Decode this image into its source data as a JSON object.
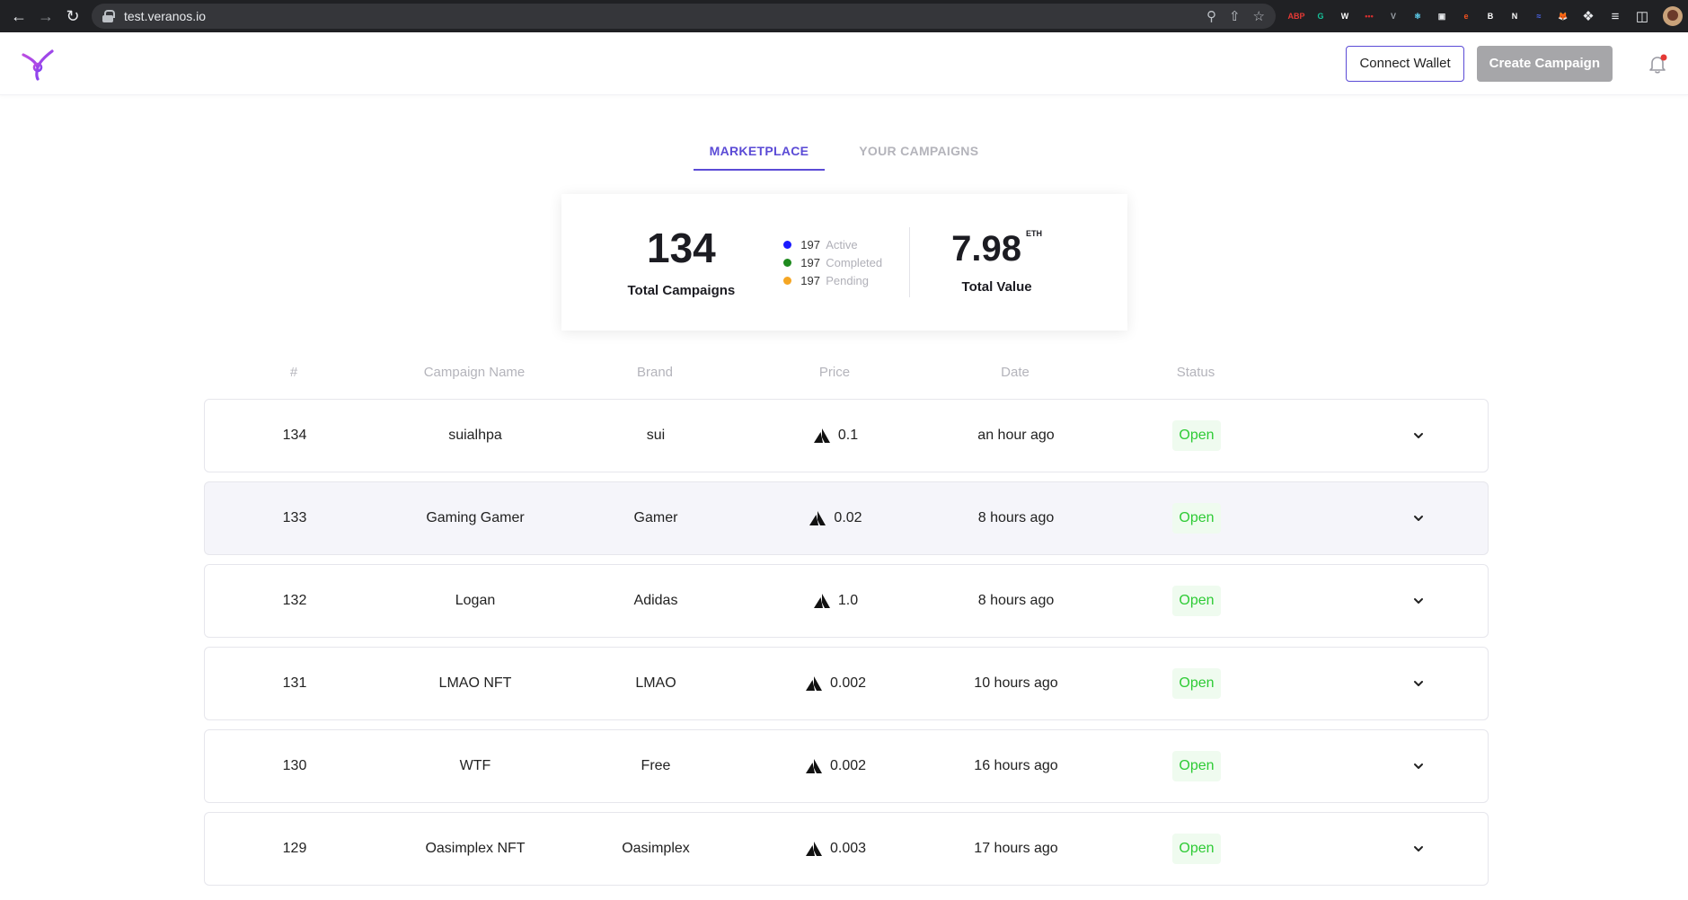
{
  "browser": {
    "url": "test.veranos.io",
    "extensions": [
      {
        "name": "adblock-icon",
        "text": "ABP",
        "color": "#e53935"
      },
      {
        "name": "grammarly-icon",
        "text": "G",
        "color": "#15c39a"
      },
      {
        "name": "w-icon",
        "text": "W",
        "color": "#ffffff"
      },
      {
        "name": "lastpass-icon",
        "text": "•••",
        "color": "#d32f2f"
      },
      {
        "name": "vue-devtools-icon",
        "text": "V",
        "color": "#9aa0a6"
      },
      {
        "name": "react-devtools-icon",
        "text": "⚛",
        "color": "#61dafb"
      },
      {
        "name": "screen-icon",
        "text": "▣",
        "color": "#e8eaed"
      },
      {
        "name": "e-icon",
        "text": "e",
        "color": "#f4511e"
      },
      {
        "name": "b-icon",
        "text": "B",
        "color": "#ffffff"
      },
      {
        "name": "notion-icon",
        "text": "N",
        "color": "#ffffff"
      },
      {
        "name": "wave-icon",
        "text": "≈",
        "color": "#4f6bff"
      },
      {
        "name": "metamask-icon",
        "text": "🦊",
        "color": "#f6851b"
      }
    ]
  },
  "header": {
    "connect_wallet": "Connect Wallet",
    "create_campaign": "Create Campaign"
  },
  "tabs": [
    {
      "label": "MARKETPLACE",
      "active": true
    },
    {
      "label": "YOUR CAMPAIGNS",
      "active": false
    }
  ],
  "summary": {
    "total": "134",
    "total_label": "Total Campaigns",
    "legend": [
      {
        "count": "197",
        "label": "Active",
        "color": "#1a1aff"
      },
      {
        "count": "197",
        "label": "Completed",
        "color": "#1e8a1e"
      },
      {
        "count": "197",
        "label": "Pending",
        "color": "#f5a623"
      }
    ],
    "value": "7.98",
    "value_unit": "ETH",
    "value_label": "Total Value"
  },
  "table": {
    "headers": [
      "#",
      "Campaign Name",
      "Brand",
      "Price",
      "Date",
      "Status"
    ],
    "rows": [
      {
        "num": "134",
        "name": "suialhpa",
        "brand": "sui",
        "price": "0.1",
        "date": "an hour ago",
        "status": "Open"
      },
      {
        "num": "133",
        "name": "Gaming Gamer",
        "brand": "Gamer",
        "price": "0.02",
        "date": "8 hours ago",
        "status": "Open"
      },
      {
        "num": "132",
        "name": "Logan",
        "brand": "Adidas",
        "price": "1.0",
        "date": "8 hours ago",
        "status": "Open"
      },
      {
        "num": "131",
        "name": "LMAO NFT",
        "brand": "LMAO",
        "price": "0.002",
        "date": "10 hours ago",
        "status": "Open"
      },
      {
        "num": "130",
        "name": "WTF",
        "brand": "Free",
        "price": "0.002",
        "date": "16 hours ago",
        "status": "Open"
      },
      {
        "num": "129",
        "name": "Oasimplex NFT",
        "brand": "Oasimplex",
        "price": "0.003",
        "date": "17 hours ago",
        "status": "Open"
      }
    ]
  }
}
